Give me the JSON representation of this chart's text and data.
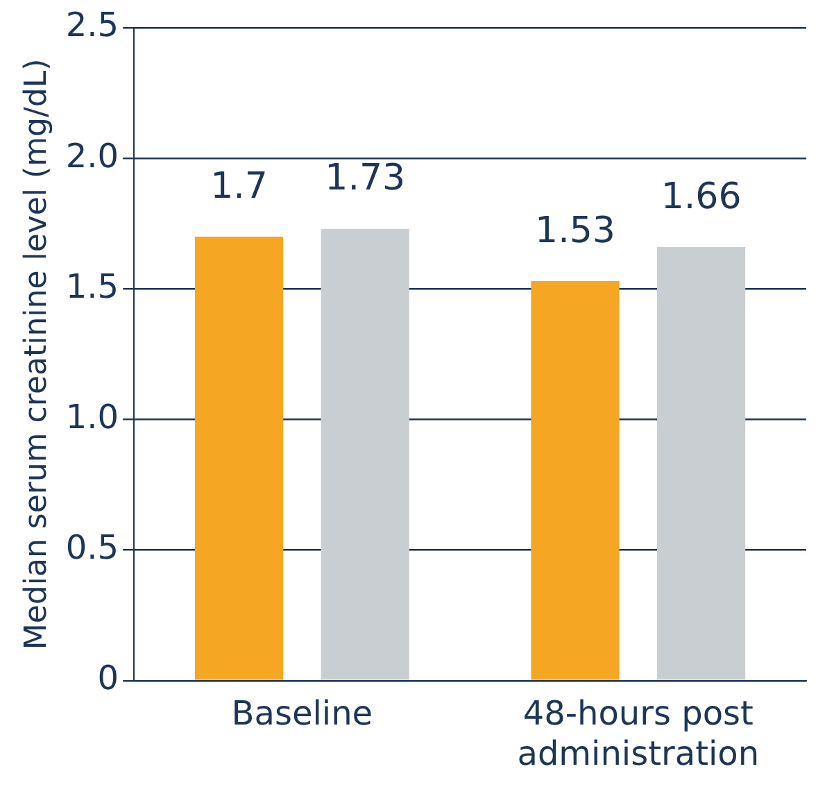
{
  "chart_data": {
    "type": "bar",
    "ylabel": "Median serum creatinine level (mg/dL)",
    "categories": [
      "Baseline",
      "48-hours post administration"
    ],
    "series": [
      {
        "color": "#f5a623",
        "values": [
          1.7,
          1.53
        ]
      },
      {
        "color": "#c9ced3",
        "values": [
          1.73,
          1.66
        ]
      }
    ],
    "ylim": [
      0,
      2.5
    ],
    "yticks": [
      0,
      0.5,
      {
        "value": 1,
        "label": "1.0"
      },
      1.5,
      {
        "value": 2,
        "label": "2.0"
      },
      2.5
    ],
    "grid": "y",
    "legend": false,
    "data_labels": true
  }
}
